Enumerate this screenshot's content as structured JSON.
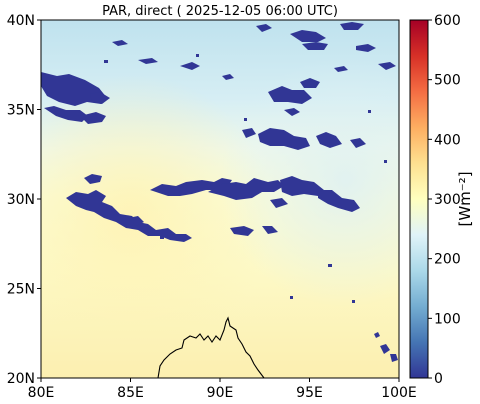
{
  "title": "PAR, direct ( 2025-12-05 06:00 UTC)",
  "map": {
    "lon_range": [
      80,
      100
    ],
    "lat_range": [
      20,
      40
    ],
    "x_ticks": [
      {
        "value": 80,
        "label": "80E"
      },
      {
        "value": 85,
        "label": "85E"
      },
      {
        "value": 90,
        "label": "90E"
      },
      {
        "value": 95,
        "label": "95E"
      },
      {
        "value": 100,
        "label": "100E"
      }
    ],
    "y_ticks": [
      {
        "value": 20,
        "label": "20N"
      },
      {
        "value": 25,
        "label": "25N"
      },
      {
        "value": 30,
        "label": "30N"
      },
      {
        "value": 35,
        "label": "35N"
      },
      {
        "value": 40,
        "label": "40N"
      }
    ],
    "cloud_color": "#313695"
  },
  "colorbar": {
    "label": "[Wm⁻²]",
    "range": [
      0,
      600
    ],
    "ticks": [
      {
        "value": 0,
        "label": "0"
      },
      {
        "value": 100,
        "label": "100"
      },
      {
        "value": 200,
        "label": "200"
      },
      {
        "value": 300,
        "label": "300"
      },
      {
        "value": 400,
        "label": "400"
      },
      {
        "value": 500,
        "label": "500"
      },
      {
        "value": 600,
        "label": "600"
      }
    ],
    "colormap": "RdYlBu_r",
    "colors": [
      "#313695",
      "#4575b4",
      "#74add1",
      "#abd9e9",
      "#e0f3f8",
      "#ffffbf",
      "#fee090",
      "#fdae61",
      "#f46d43",
      "#d73027",
      "#a50026"
    ]
  }
}
